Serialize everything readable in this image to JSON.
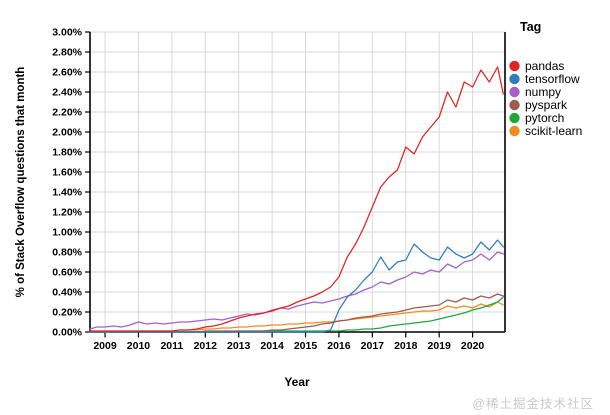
{
  "watermark": "@稀土掘金技术社区",
  "chart_data": {
    "type": "line",
    "title": "",
    "xlabel": "Year",
    "ylabel": "% of Stack Overflow questions that month",
    "legend_title": "Tag",
    "legend_position": "right",
    "grid": true,
    "xlim": [
      2008.55,
      2020.97
    ],
    "ylim": [
      0,
      3.0
    ],
    "x_tick_values": [
      2009,
      2010,
      2011,
      2012,
      2013,
      2014,
      2015,
      2016,
      2017,
      2018,
      2019,
      2020
    ],
    "x_tick_labels": [
      "2009",
      "2010",
      "2011",
      "2012",
      "2013",
      "2014",
      "2015",
      "2016",
      "2017",
      "2018",
      "2019",
      "2020"
    ],
    "y_tick_values": [
      0,
      0.2,
      0.4,
      0.6,
      0.8,
      1.0,
      1.2,
      1.4,
      1.6,
      1.8,
      2.0,
      2.2,
      2.4,
      2.6,
      2.8,
      3.0
    ],
    "y_tick_labels": [
      "0.00%",
      "0.20%",
      "0.40%",
      "0.60%",
      "0.80%",
      "1.00%",
      "1.20%",
      "1.40%",
      "1.60%",
      "1.80%",
      "2.00%",
      "2.20%",
      "2.40%",
      "2.60%",
      "2.80%",
      "3.00%"
    ],
    "x": [
      2008.55,
      2008.75,
      2009,
      2009.25,
      2009.5,
      2009.75,
      2010,
      2010.25,
      2010.5,
      2010.75,
      2011,
      2011.25,
      2011.5,
      2011.75,
      2012,
      2012.25,
      2012.5,
      2012.75,
      2013,
      2013.25,
      2013.5,
      2013.75,
      2014,
      2014.25,
      2014.5,
      2014.75,
      2015,
      2015.25,
      2015.5,
      2015.75,
      2016,
      2016.25,
      2016.5,
      2016.75,
      2017,
      2017.25,
      2017.5,
      2017.75,
      2018,
      2018.25,
      2018.5,
      2018.75,
      2019,
      2019.25,
      2019.5,
      2019.75,
      2020,
      2020.25,
      2020.5,
      2020.75,
      2020.92
    ],
    "series": [
      {
        "name": "pandas",
        "color": "#e02421",
        "values": [
          0.01,
          0.01,
          0.01,
          0.01,
          0.01,
          0.01,
          0.01,
          0.01,
          0.01,
          0.01,
          0.01,
          0.02,
          0.02,
          0.03,
          0.05,
          0.06,
          0.08,
          0.11,
          0.14,
          0.16,
          0.18,
          0.19,
          0.21,
          0.24,
          0.26,
          0.3,
          0.33,
          0.36,
          0.4,
          0.45,
          0.55,
          0.75,
          0.88,
          1.05,
          1.25,
          1.45,
          1.55,
          1.62,
          1.85,
          1.78,
          1.95,
          2.05,
          2.15,
          2.4,
          2.25,
          2.5,
          2.45,
          2.62,
          2.5,
          2.65,
          2.38
        ]
      },
      {
        "name": "tensorflow",
        "color": "#2e7ebc",
        "values": [
          0,
          0,
          0,
          0,
          0,
          0,
          0,
          0,
          0,
          0,
          0,
          0,
          0,
          0,
          0,
          0,
          0,
          0,
          0,
          0,
          0,
          0,
          0,
          0,
          0,
          0,
          0,
          0,
          0,
          0.02,
          0.22,
          0.35,
          0.42,
          0.52,
          0.6,
          0.75,
          0.62,
          0.7,
          0.72,
          0.88,
          0.8,
          0.74,
          0.72,
          0.85,
          0.78,
          0.74,
          0.78,
          0.9,
          0.82,
          0.92,
          0.85
        ]
      },
      {
        "name": "numpy",
        "color": "#a361c9",
        "values": [
          0.03,
          0.05,
          0.05,
          0.06,
          0.05,
          0.07,
          0.1,
          0.08,
          0.09,
          0.08,
          0.09,
          0.1,
          0.1,
          0.11,
          0.12,
          0.13,
          0.12,
          0.14,
          0.16,
          0.18,
          0.17,
          0.19,
          0.22,
          0.24,
          0.23,
          0.26,
          0.28,
          0.3,
          0.29,
          0.31,
          0.33,
          0.36,
          0.38,
          0.42,
          0.45,
          0.5,
          0.48,
          0.52,
          0.55,
          0.6,
          0.58,
          0.62,
          0.6,
          0.68,
          0.64,
          0.7,
          0.72,
          0.78,
          0.72,
          0.8,
          0.78
        ]
      },
      {
        "name": "pyspark",
        "color": "#9e5b51",
        "values": [
          0,
          0,
          0,
          0,
          0,
          0,
          0,
          0,
          0,
          0,
          0,
          0,
          0,
          0,
          0.01,
          0.01,
          0.01,
          0.01,
          0.01,
          0.01,
          0.01,
          0.01,
          0.02,
          0.02,
          0.03,
          0.04,
          0.05,
          0.06,
          0.08,
          0.09,
          0.11,
          0.12,
          0.14,
          0.15,
          0.16,
          0.18,
          0.19,
          0.2,
          0.22,
          0.24,
          0.25,
          0.26,
          0.27,
          0.32,
          0.3,
          0.34,
          0.32,
          0.36,
          0.34,
          0.38,
          0.36
        ]
      },
      {
        "name": "pytorch",
        "color": "#22a63c",
        "values": [
          0,
          0,
          0,
          0,
          0,
          0,
          0,
          0,
          0,
          0,
          0,
          0,
          0,
          0,
          0,
          0,
          0,
          0,
          0.01,
          0.01,
          0.01,
          0.01,
          0.01,
          0.01,
          0.01,
          0.01,
          0.01,
          0.01,
          0.01,
          0.01,
          0.01,
          0.02,
          0.02,
          0.03,
          0.03,
          0.04,
          0.06,
          0.07,
          0.08,
          0.09,
          0.1,
          0.11,
          0.13,
          0.15,
          0.17,
          0.19,
          0.22,
          0.24,
          0.27,
          0.3,
          0.35
        ]
      },
      {
        "name": "scikit-learn",
        "color": "#f08c1e",
        "values": [
          0,
          0,
          0,
          0,
          0,
          0,
          0.01,
          0.01,
          0.01,
          0.01,
          0.01,
          0.02,
          0.02,
          0.02,
          0.03,
          0.03,
          0.04,
          0.04,
          0.05,
          0.05,
          0.06,
          0.06,
          0.07,
          0.07,
          0.08,
          0.08,
          0.09,
          0.09,
          0.1,
          0.1,
          0.11,
          0.12,
          0.13,
          0.14,
          0.15,
          0.16,
          0.17,
          0.18,
          0.19,
          0.2,
          0.21,
          0.21,
          0.22,
          0.26,
          0.24,
          0.26,
          0.24,
          0.28,
          0.25,
          0.3,
          0.27
        ]
      }
    ]
  }
}
